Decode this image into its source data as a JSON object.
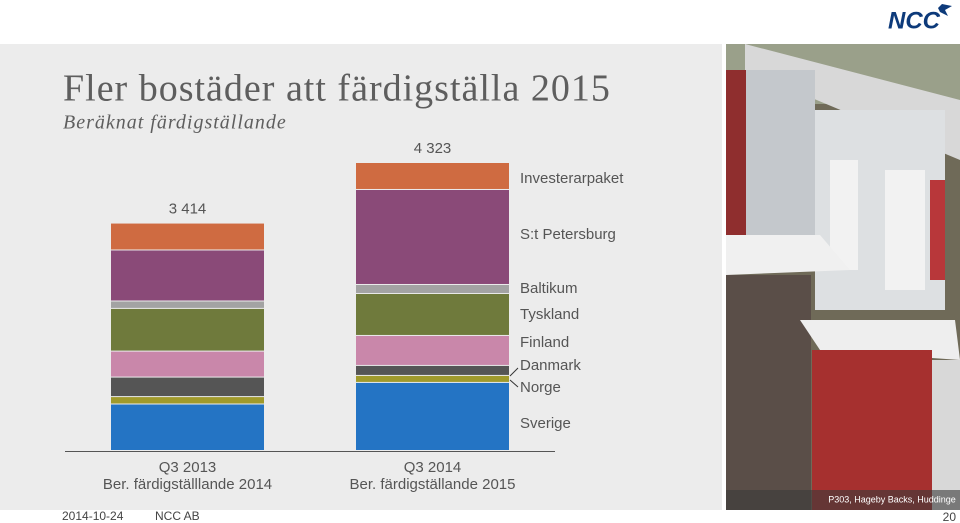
{
  "title": "Fler bostäder att färdigställa 2015",
  "subtitle": "Beräknat färdigställande",
  "logo": "NCC",
  "footer": {
    "date": "2014-10-24",
    "company": "NCC AB",
    "page": "20"
  },
  "photo_caption": "P303, Hageby Backs, Huddinge",
  "chart_data": {
    "type": "stacked-bar",
    "categories": [
      "Q3 2013",
      "Q3 2014"
    ],
    "category_sublabels": [
      "Ber. färdigställlande 2014",
      "Ber. färdigställande 2015"
    ],
    "totals": [
      3414,
      4323
    ],
    "total_labels": [
      "3 414",
      "4 323"
    ],
    "series": [
      {
        "name": "Sverige",
        "color": "#2474c4",
        "values": [
          698,
          1022
        ]
      },
      {
        "name": "Norge",
        "color": "#a09a2c",
        "values": [
          111,
          105
        ]
      },
      {
        "name": "Danmark",
        "color": "#555555",
        "values": [
          293,
          150
        ]
      },
      {
        "name": "Finland",
        "color": "#c987aa",
        "values": [
          390,
          450
        ]
      },
      {
        "name": "Tyskland",
        "color": "#6f7a3c",
        "values": [
          641,
          630
        ]
      },
      {
        "name": "Baltikum",
        "color": "#a3a3a3",
        "values": [
          111,
          135
        ]
      },
      {
        "name": "S:t Petersburg",
        "color": "#8a4a78",
        "values": [
          766,
          1426
        ]
      },
      {
        "name": "Investerarpaket",
        "color": "#cf6b41",
        "values": [
          404,
          405
        ]
      }
    ]
  }
}
